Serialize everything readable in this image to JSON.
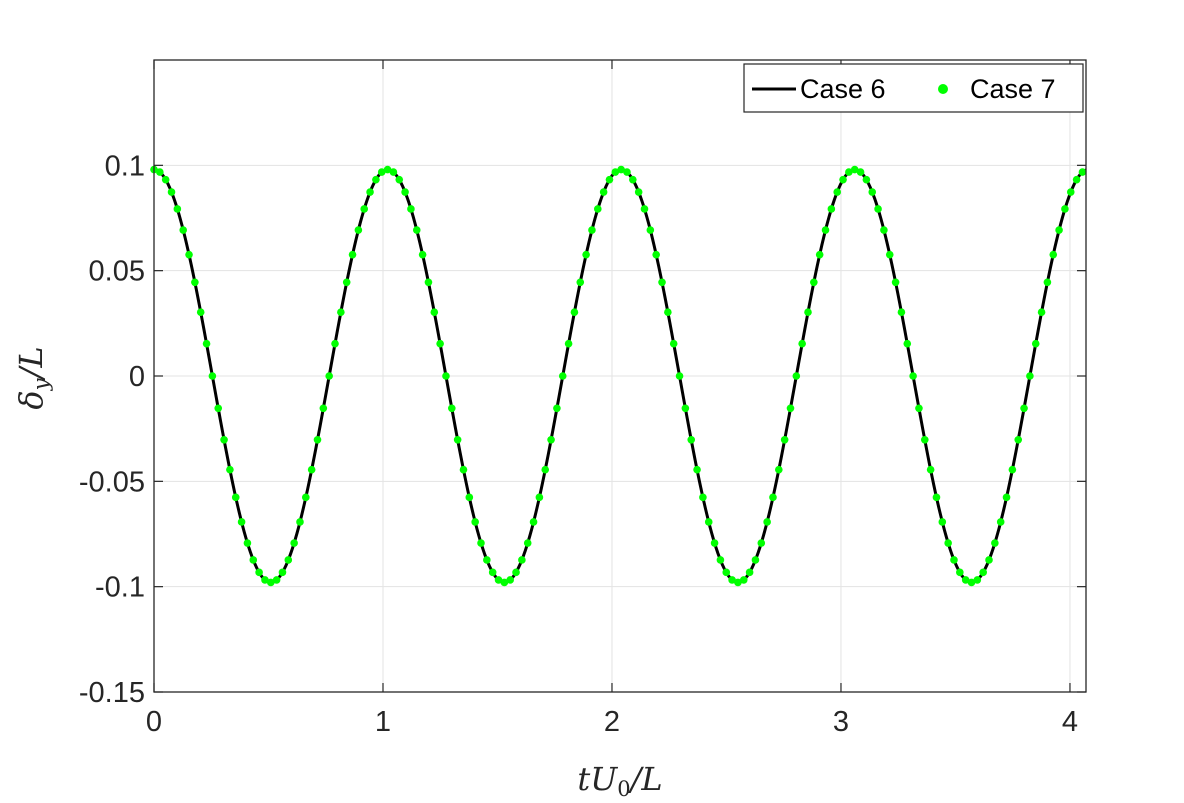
{
  "chart_data": {
    "type": "line",
    "title": "",
    "xlabel": "tU0/L",
    "ylabel": "δy/L",
    "xlim": [
      0,
      4.07
    ],
    "ylim": [
      -0.15,
      0.15
    ],
    "x_ticks": [
      0,
      1,
      2,
      3,
      4
    ],
    "x_tick_labels": [
      "0",
      "1",
      "2",
      "3",
      "4"
    ],
    "y_ticks": [
      -0.15,
      -0.1,
      -0.05,
      0,
      0.05,
      0.1
    ],
    "y_tick_labels": [
      "-0.15",
      "-0.1",
      "-0.05",
      "0",
      "0.05",
      "0.1"
    ],
    "grid": true,
    "legend_position": "top-right",
    "legend_orientation": "horizontal",
    "series": [
      {
        "name": "Case 6",
        "style": "line",
        "color": "#000000",
        "amplitude": 0.098,
        "period": 1.02,
        "x": [
          0,
          0.05,
          0.1,
          0.15,
          0.2,
          0.25,
          0.3,
          0.35,
          0.4,
          0.45,
          0.51,
          0.55,
          0.6,
          0.65,
          0.7,
          0.75,
          0.8,
          0.85,
          0.9,
          0.95,
          1.02,
          1.05,
          1.1,
          1.15,
          1.2,
          1.25,
          1.3,
          1.35,
          1.4,
          1.45,
          1.53,
          1.55,
          1.6,
          1.65,
          1.7,
          1.75,
          1.8,
          1.85,
          1.9,
          1.95,
          2.04,
          2.1,
          2.15,
          2.2,
          2.25,
          2.3,
          2.35,
          2.4,
          2.45,
          2.5,
          2.55,
          2.6,
          2.65,
          2.7,
          2.75,
          2.8,
          2.85,
          2.9,
          2.95,
          3.06,
          3.1,
          3.15,
          3.2,
          3.25,
          3.3,
          3.35,
          3.4,
          3.45,
          3.5,
          3.57,
          3.6,
          3.65,
          3.7,
          3.75,
          3.8,
          3.85,
          3.9,
          3.95,
          4.0,
          4.07
        ],
        "y": [
          0.098,
          0.092,
          0.077,
          0.052,
          0.023,
          -0.008,
          -0.039,
          -0.065,
          -0.085,
          -0.096,
          -0.098,
          -0.093,
          -0.078,
          -0.055,
          -0.026,
          0.005,
          0.036,
          0.063,
          0.083,
          0.096,
          0.098,
          0.096,
          0.083,
          0.063,
          0.036,
          0.005,
          -0.026,
          -0.055,
          -0.078,
          -0.093,
          -0.098,
          -0.096,
          -0.086,
          -0.067,
          -0.041,
          -0.011,
          0.02,
          0.05,
          0.074,
          0.091,
          0.098,
          0.091,
          0.074,
          0.05,
          0.02,
          -0.011,
          -0.041,
          -0.067,
          -0.086,
          -0.096,
          -0.098,
          -0.093,
          -0.078,
          -0.055,
          -0.026,
          0.005,
          0.036,
          0.063,
          0.083,
          0.098,
          0.093,
          0.078,
          0.055,
          0.026,
          -0.005,
          -0.036,
          -0.063,
          -0.083,
          -0.096,
          -0.098,
          -0.096,
          -0.086,
          -0.067,
          -0.041,
          -0.011,
          0.02,
          0.05,
          0.074,
          0.091,
          0.098
        ]
      },
      {
        "name": "Case 7",
        "style": "markers",
        "color": "#00ff00",
        "amplitude": 0.098,
        "period": 1.02,
        "x": [
          0,
          0.05,
          0.1,
          0.15,
          0.2,
          0.25,
          0.3,
          0.35,
          0.4,
          0.45,
          0.51,
          0.55,
          0.6,
          0.65,
          0.7,
          0.75,
          0.8,
          0.85,
          0.9,
          0.95,
          1.02,
          1.05,
          1.1,
          1.15,
          1.2,
          1.25,
          1.3,
          1.35,
          1.4,
          1.45,
          1.53,
          1.55,
          1.6,
          1.65,
          1.7,
          1.75,
          1.8,
          1.85,
          1.9,
          1.95,
          2.04,
          2.1,
          2.15,
          2.2,
          2.25,
          2.3,
          2.35,
          2.4,
          2.45,
          2.5,
          2.55,
          2.6,
          2.65,
          2.7,
          2.75,
          2.8,
          2.85,
          2.9,
          2.95,
          3.06,
          3.1,
          3.15,
          3.2,
          3.25,
          3.3,
          3.35,
          3.4,
          3.45,
          3.5,
          3.57,
          3.6,
          3.65,
          3.7,
          3.75,
          3.8,
          3.85,
          3.9,
          3.95,
          4.0,
          4.07
        ],
        "y": [
          0.098,
          0.092,
          0.077,
          0.052,
          0.023,
          -0.008,
          -0.039,
          -0.065,
          -0.085,
          -0.096,
          -0.098,
          -0.093,
          -0.078,
          -0.055,
          -0.026,
          0.005,
          0.036,
          0.063,
          0.083,
          0.096,
          0.098,
          0.096,
          0.083,
          0.063,
          0.036,
          0.005,
          -0.026,
          -0.055,
          -0.078,
          -0.093,
          -0.098,
          -0.096,
          -0.086,
          -0.067,
          -0.041,
          -0.011,
          0.02,
          0.05,
          0.074,
          0.091,
          0.098,
          0.091,
          0.074,
          0.05,
          0.02,
          -0.011,
          -0.041,
          -0.067,
          -0.086,
          -0.096,
          -0.098,
          -0.093,
          -0.078,
          -0.055,
          -0.026,
          0.005,
          0.036,
          0.063,
          0.083,
          0.098,
          0.093,
          0.078,
          0.055,
          0.026,
          -0.005,
          -0.036,
          -0.063,
          -0.083,
          -0.096,
          -0.098,
          -0.096,
          -0.086,
          -0.067,
          -0.041,
          -0.011,
          0.02,
          0.05,
          0.074,
          0.091,
          0.098
        ]
      }
    ]
  }
}
